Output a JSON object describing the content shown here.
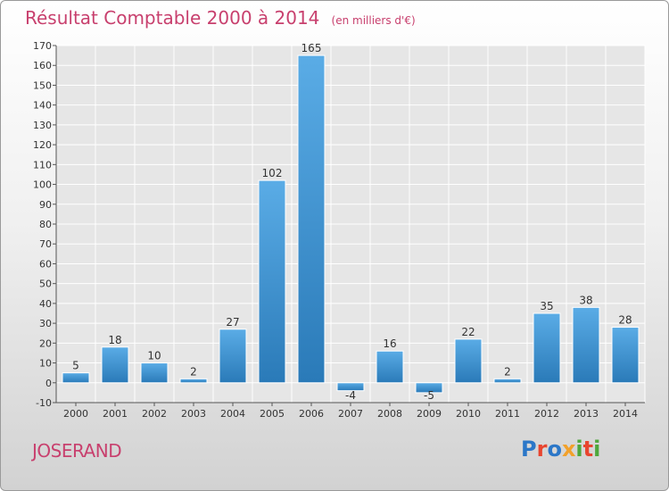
{
  "header": {
    "title": "Résultat Comptable 2000 à 2014",
    "subtitle": "(en milliers d'€)"
  },
  "footer": {
    "commune": "JOSERAND",
    "logo_text": "Proxiti",
    "logo_colors": [
      "#2b77c8",
      "#e8452f",
      "#f2a12a",
      "#4ea73c"
    ]
  },
  "colors": {
    "bar_top": "#5aace6",
    "bar_bottom": "#2a7ab8",
    "accent": "#c8406e"
  },
  "chart_data": {
    "type": "bar",
    "categories": [
      "2000",
      "2001",
      "2002",
      "2003",
      "2004",
      "2005",
      "2006",
      "2007",
      "2008",
      "2009",
      "2010",
      "2011",
      "2012",
      "2013",
      "2014"
    ],
    "values": [
      5,
      18,
      10,
      2,
      27,
      102,
      165,
      -4,
      16,
      -5,
      22,
      2,
      35,
      38,
      28
    ],
    "ylim": [
      -10,
      170
    ],
    "yticks": [
      -10,
      0,
      10,
      20,
      30,
      40,
      50,
      60,
      70,
      80,
      90,
      100,
      110,
      120,
      130,
      140,
      150,
      160,
      170
    ],
    "grid": true,
    "title": "Résultat Comptable 2000 à 2014",
    "xlabel": "",
    "ylabel": ""
  }
}
